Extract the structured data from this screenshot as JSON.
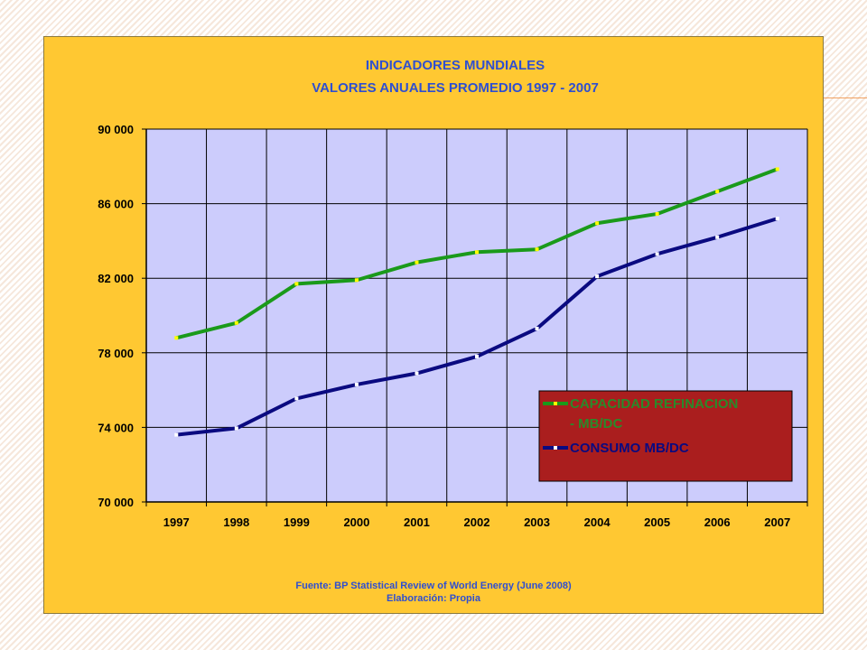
{
  "chart_data": {
    "type": "line",
    "title": "INDICADORES MUNDIALES",
    "subtitle": "VALORES ANUALES PROMEDIO 1997 - 2007",
    "categories": [
      "1997",
      "1998",
      "1999",
      "2000",
      "2001",
      "2002",
      "2003",
      "2004",
      "2005",
      "2006",
      "2007"
    ],
    "ylim": [
      70000,
      90000
    ],
    "yticks": [
      70000,
      74000,
      78000,
      82000,
      86000,
      90000
    ],
    "ytick_labels": [
      "70 000",
      "74 000",
      "78 000",
      "82 000",
      "86 000",
      "90 000"
    ],
    "grid": true,
    "legend_position": "right",
    "series": [
      {
        "name": "CAPACIDAD REFINACION - MB/DC",
        "name_line1": "CAPACIDAD REFINACION",
        "name_line2": "- MB/DC",
        "color": "#1a9a1a",
        "marker_color": "#ffff00",
        "text_color": "#2a8a2a",
        "values": [
          78800,
          79600,
          81700,
          81900,
          82850,
          83400,
          83550,
          84950,
          85450,
          86650,
          87850
        ]
      },
      {
        "name": "CONSUMO MB/DC",
        "color": "#0a0a80",
        "marker_color": "#ffffff",
        "text_color": "#0a0a80",
        "values": [
          73600,
          73950,
          75550,
          76300,
          76900,
          77800,
          79300,
          82100,
          83300,
          84200,
          85200
        ]
      }
    ],
    "colors": {
      "plot_background": "#ccccfc",
      "chart_background": "#ffc832",
      "legend_background": "#aa1e1e"
    },
    "source": "Fuente: BP  Statistical Review of World Energy (June 2008)",
    "credit": "Elaboración: Propia"
  }
}
